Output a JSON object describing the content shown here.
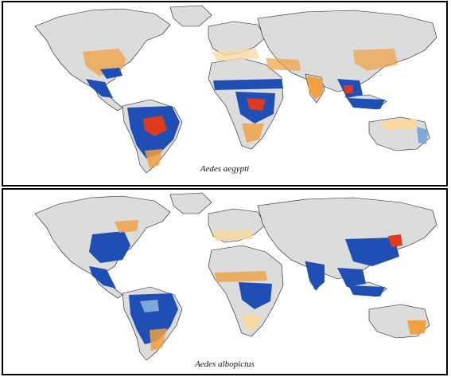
{
  "figure": {
    "panels": [
      {
        "caption": "Aedes aegypti"
      },
      {
        "caption": "Aedes albopictus"
      }
    ]
  },
  "colors": {
    "land": "#dcdcdc",
    "border": "#1a1a1a",
    "low": "#f7d9a0",
    "mid": "#f0a040",
    "high_warm": "#e03a1e",
    "high": "#1f4fb4",
    "mid_blue": "#7fa8d8"
  }
}
